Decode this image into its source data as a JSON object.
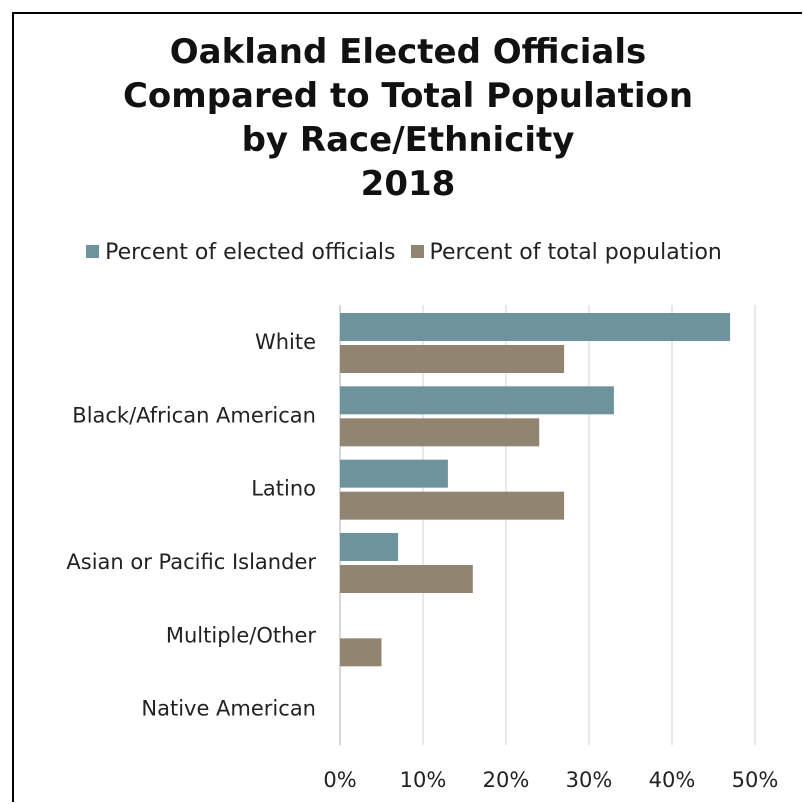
{
  "chart_data": {
    "type": "bar",
    "orientation": "horizontal",
    "title_lines": [
      "Oakland Elected Officials",
      "Compared to Total Population",
      "by Race/Ethnicity",
      "2018"
    ],
    "categories": [
      "White",
      "Black/African American",
      "Latino",
      "Asian or Pacific Islander",
      "Multiple/Other",
      "Native American"
    ],
    "series": [
      {
        "name": "Percent of elected officials",
        "values": [
          47,
          33,
          13,
          7,
          0,
          0
        ],
        "color": "#6d939c"
      },
      {
        "name": "Percent of total population",
        "values": [
          27,
          24,
          27,
          16,
          5,
          0
        ],
        "color": "#918571"
      }
    ],
    "xlim": [
      0,
      50
    ],
    "xticks": [
      "0%",
      "10%",
      "20%",
      "30%",
      "40%",
      "50%"
    ],
    "xtick_values": [
      0,
      10,
      20,
      30,
      40,
      50
    ],
    "grid": "vertical",
    "legend_position": "top"
  }
}
